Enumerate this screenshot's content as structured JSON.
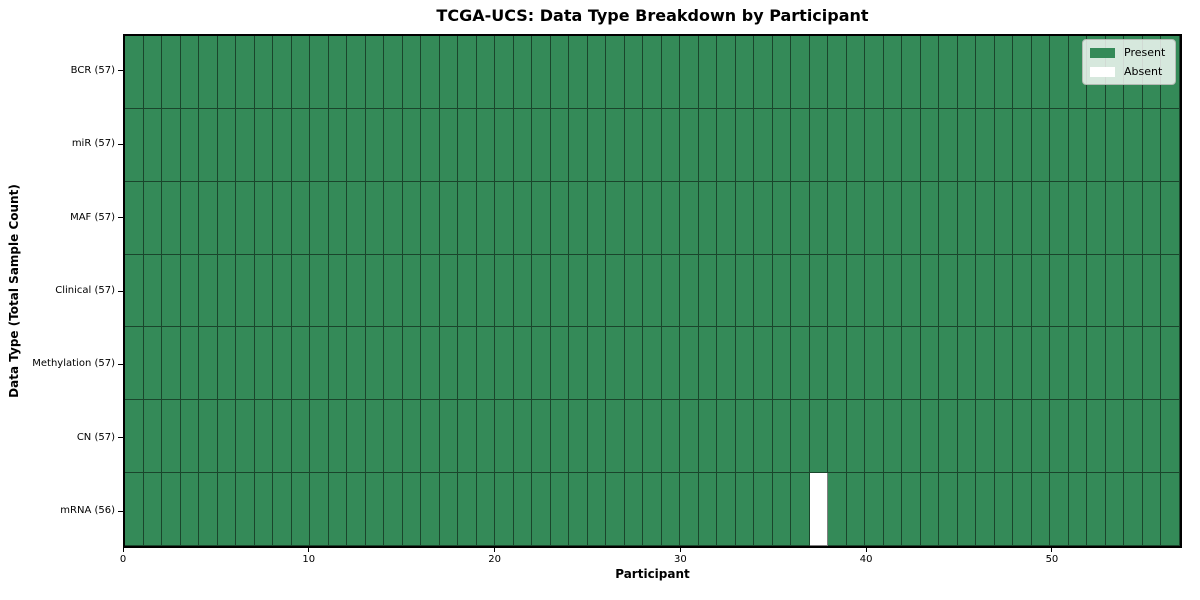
{
  "chart_data": {
    "type": "heatmap",
    "title": "TCGA-UCS: Data Type Breakdown by Participant",
    "xlabel": "Participant",
    "ylabel": "Data Type (Total Sample Count)",
    "x_range": [
      0,
      57
    ],
    "x_ticks": [
      0,
      10,
      20,
      30,
      40,
      50
    ],
    "n_participants": 57,
    "grid": "cell-borders-on",
    "rows": [
      {
        "label": "BCR (57)",
        "data_type": "BCR",
        "sample_count": 57,
        "absent_participants": []
      },
      {
        "label": "miR (57)",
        "data_type": "miR",
        "sample_count": 57,
        "absent_participants": []
      },
      {
        "label": "MAF (57)",
        "data_type": "MAF",
        "sample_count": 57,
        "absent_participants": []
      },
      {
        "label": "Clinical (57)",
        "data_type": "Clinical",
        "sample_count": 57,
        "absent_participants": []
      },
      {
        "label": "Methylation (57)",
        "data_type": "Methylation",
        "sample_count": 57,
        "absent_participants": []
      },
      {
        "label": "CN (57)",
        "data_type": "CN",
        "sample_count": 57,
        "absent_participants": []
      },
      {
        "label": "mRNA (56)",
        "data_type": "mRNA",
        "sample_count": 56,
        "absent_participants": [
          37
        ]
      }
    ],
    "legend": {
      "position": "upper right",
      "entries": [
        {
          "label": "Present",
          "color": "#348a58"
        },
        {
          "label": "Absent",
          "color": "#ffffff"
        }
      ]
    },
    "colors": {
      "present": "#348a58",
      "absent": "#ffffff",
      "cell_edge": "#1d4b31",
      "spine": "#000000"
    }
  }
}
